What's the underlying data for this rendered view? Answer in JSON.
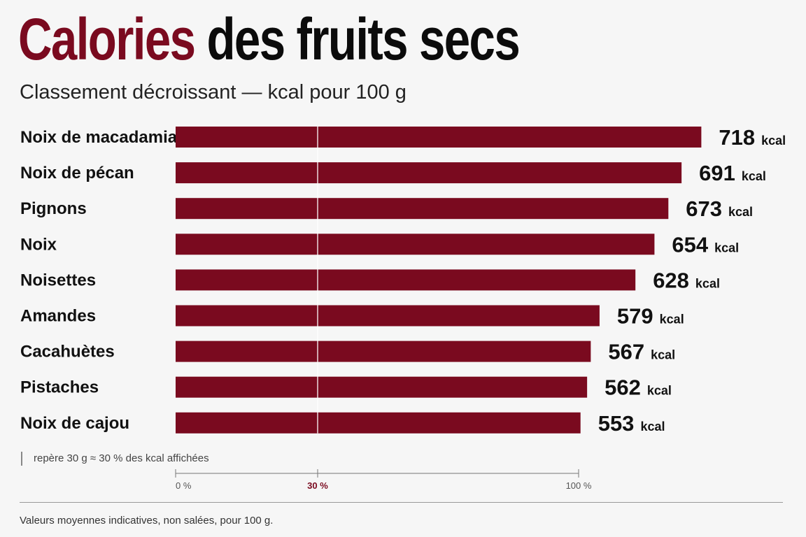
{
  "header": {
    "title_accent": "Calories",
    "title_rest": " des fruits secs",
    "subtitle": "Classement décroissant — kcal pour 100 g"
  },
  "note": "repère 30 g ≈ 30 % des kcal affichées",
  "footer": "Valeurs moyennes indicatives, non salées, pour 100 g.",
  "colors": {
    "bar": "#7a0a1f",
    "accent": "#7a0a1f",
    "text": "#111111",
    "background": "#f6f6f6"
  },
  "chart_data": {
    "type": "bar",
    "orientation": "horizontal",
    "title": "Calories des fruits secs",
    "subtitle": "Classement décroissant — kcal pour 100 g",
    "categories": [
      "Noix de macadamia",
      "Noix de pécan",
      "Pignons",
      "Noix",
      "Noisettes",
      "Amandes",
      "Cacahuètes",
      "Pistaches",
      "Noix de cajou"
    ],
    "values": [
      718,
      691,
      673,
      654,
      628,
      579,
      567,
      562,
      553
    ],
    "unit": "kcal",
    "xlim": [
      0,
      800
    ],
    "reference_line": {
      "percent": 30,
      "label": "30 %"
    },
    "scale_ticks": [
      "0 %",
      "30 %",
      "100 %"
    ],
    "grid": false,
    "legend": "none"
  }
}
